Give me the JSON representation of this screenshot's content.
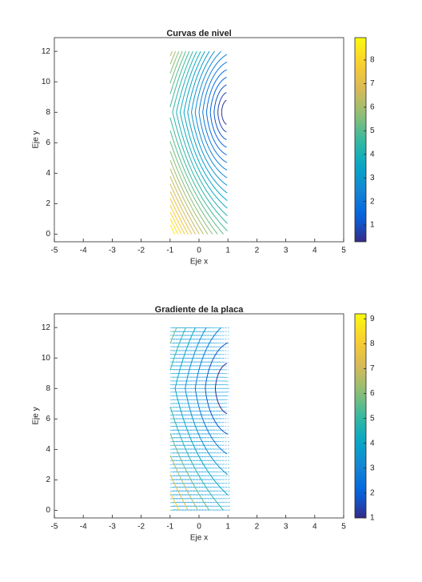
{
  "chart_data": [
    {
      "type": "contour",
      "title": "Curvas de nivel",
      "xlabel": "Eje x",
      "ylabel": "Eje y",
      "xlim": [
        -5,
        5
      ],
      "ylim": [
        -0.5,
        12.9
      ],
      "xticks": [
        -5,
        -4,
        -3,
        -2,
        -1,
        0,
        1,
        2,
        3,
        4,
        5
      ],
      "yticks": [
        0,
        2,
        4,
        6,
        8,
        10,
        12
      ],
      "levels": [
        0.5,
        0.8,
        1.1,
        1.4,
        1.7,
        2.0,
        2.3,
        2.6,
        2.9,
        3.2,
        3.5,
        3.8,
        4.1,
        4.4,
        4.7,
        5.0,
        5.3,
        5.6,
        5.9,
        6.2,
        6.5,
        6.8,
        7.1,
        7.4,
        7.7,
        8.0,
        8.3,
        8.6
      ],
      "clim": [
        0.29,
        8.95
      ],
      "cticks": [
        1,
        2,
        3,
        4,
        5,
        6,
        7,
        8
      ]
    },
    {
      "type": "quiver",
      "title": "Gradiente de la placa",
      "xlabel": "Eje x",
      "ylabel": "Eje y",
      "xlim": [
        -5,
        5
      ],
      "ylim": [
        -0.5,
        12.9
      ],
      "xticks": [
        -5,
        -4,
        -3,
        -2,
        -1,
        0,
        1,
        2,
        3,
        4,
        5
      ],
      "yticks": [
        0,
        2,
        4,
        6,
        8,
        10,
        12
      ],
      "levels": [
        1,
        1.8,
        2.6,
        3.4,
        4.2,
        5.0,
        5.8,
        6.6,
        7.4,
        8.2,
        9
      ],
      "clim": [
        1,
        9.2
      ],
      "cticks": [
        1,
        2,
        3,
        4,
        5,
        6,
        7,
        8,
        9
      ]
    }
  ]
}
